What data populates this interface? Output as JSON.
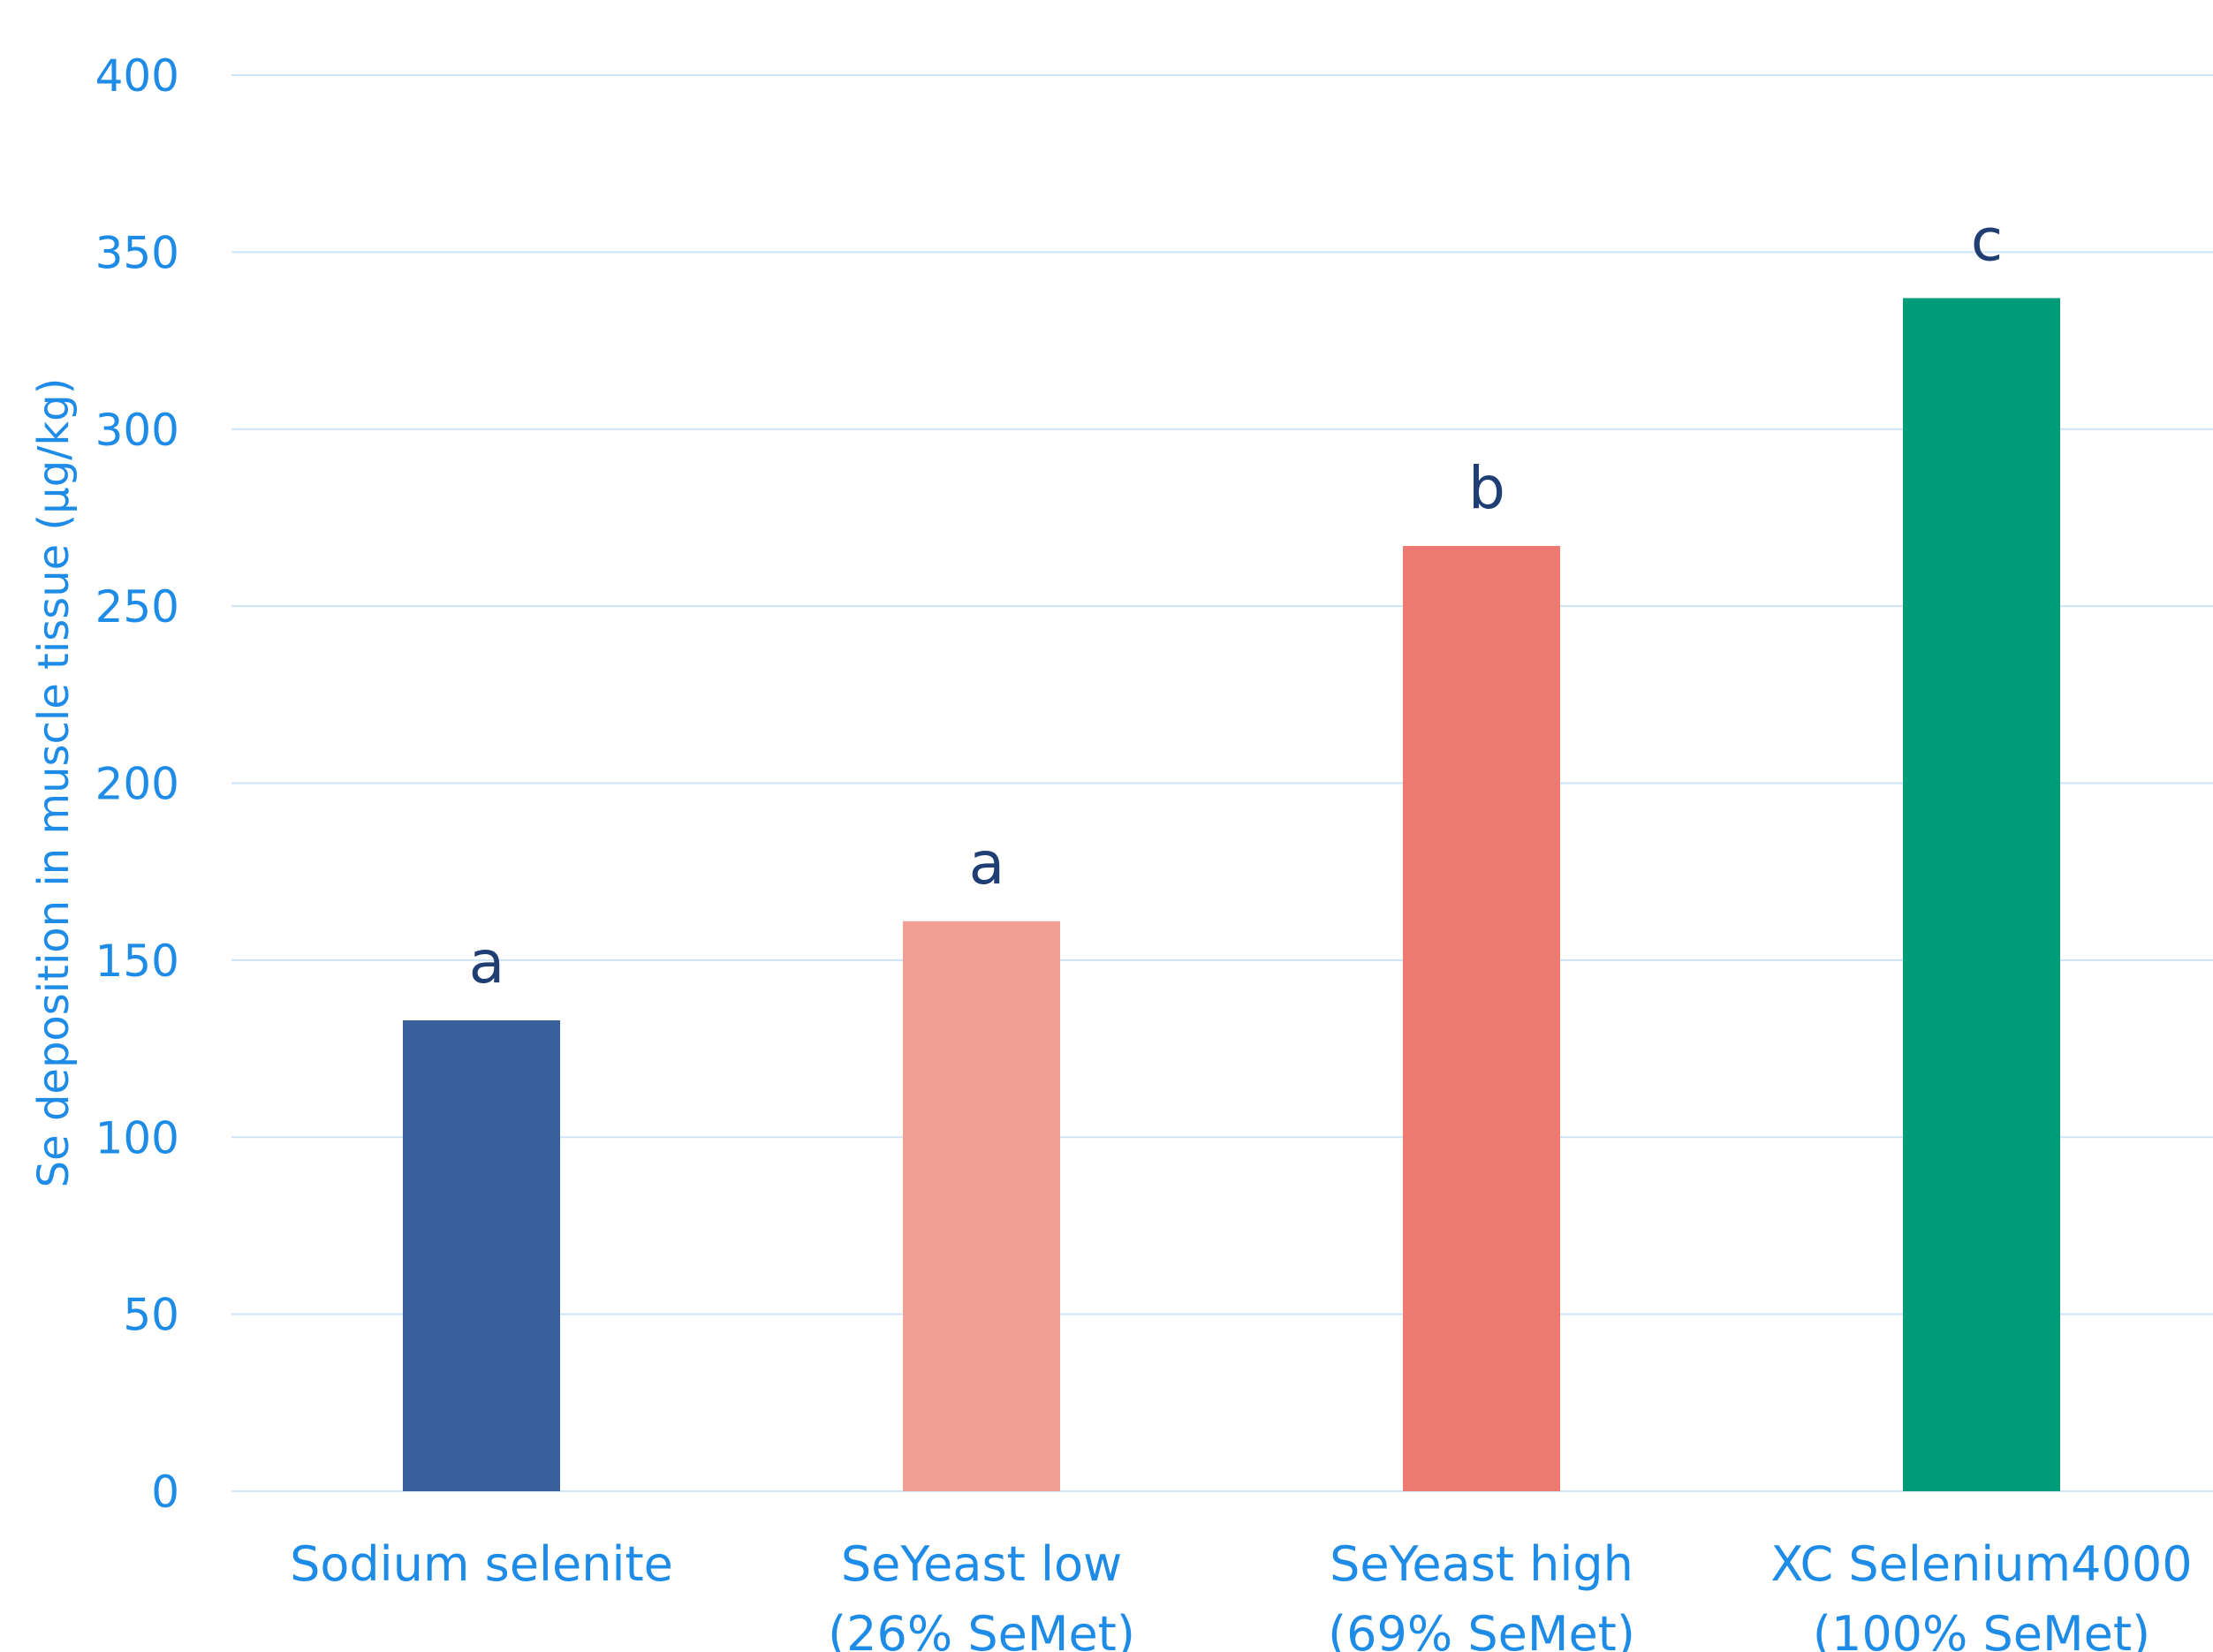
{
  "chart_data": {
    "type": "bar",
    "title": "",
    "xlabel": "",
    "ylabel": "Se deposition in muscle tissue (µg/kg)",
    "ylim": [
      0,
      400
    ],
    "yticks": [
      0,
      50,
      100,
      150,
      200,
      250,
      300,
      350,
      400
    ],
    "grid": true,
    "legend": "none",
    "categories": [
      [
        "Sodium selenite"
      ],
      [
        "SeYeast low",
        "(26% SeMet)"
      ],
      [
        "SeYeast high",
        "(69% SeMet)"
      ],
      [
        "XC Selenium4000",
        "(100% SeMet)"
      ]
    ],
    "values": [
      133,
      161,
      267,
      337
    ],
    "significance_labels": [
      "a",
      "a",
      "b",
      "c"
    ],
    "bar_colors": [
      "#375F9B",
      "#F19F93",
      "#EC7A70",
      "#009B77"
    ]
  },
  "colors": {
    "axis_text": "#1E8CE6",
    "gridline": "#CFE3F7",
    "significance_text": "#1F3E73"
  }
}
